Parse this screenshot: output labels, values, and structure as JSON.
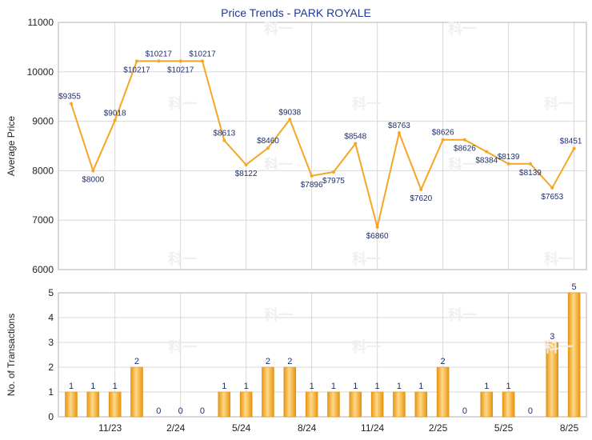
{
  "chart_data": [
    {
      "type": "line",
      "title": "Price Trends - PARK ROYALE",
      "ylabel": "Average Price",
      "ylim": [
        6000,
        11000
      ],
      "yticks": [
        6000,
        7000,
        8000,
        9000,
        10000,
        11000
      ],
      "color": "#f5a623",
      "values": [
        9355,
        8000,
        9018,
        10217,
        10217,
        10217,
        10217,
        8613,
        8122,
        8460,
        9038,
        7896,
        7975,
        8548,
        6860,
        8763,
        7620,
        8626,
        8626,
        8384,
        8139,
        8139,
        7653,
        8451
      ],
      "labels": [
        "$9355",
        "$8000",
        "$9018",
        "$10217",
        "$10217",
        "$10217",
        "$10217",
        "$8613",
        "$8122",
        "$8460",
        "$9038",
        "$7896",
        "$7975",
        "$8548",
        "$6860",
        "$8763",
        "$7620",
        "$8626",
        "$8626",
        "$8384",
        "$8139",
        "$8139",
        "$7653",
        "$8451"
      ]
    },
    {
      "type": "bar",
      "ylabel": "No. of Transactions",
      "ylim": [
        0,
        5
      ],
      "yticks": [
        0,
        1,
        2,
        3,
        4,
        5
      ],
      "color": "#f5a623",
      "xticks": [
        "11/23",
        "2/24",
        "5/24",
        "8/24",
        "11/24",
        "2/25",
        "5/25",
        "8/25"
      ],
      "values": [
        1,
        1,
        1,
        2,
        0,
        0,
        0,
        1,
        1,
        2,
        2,
        1,
        1,
        1,
        1,
        1,
        1,
        2,
        0,
        1,
        1,
        0,
        3,
        5
      ]
    }
  ]
}
